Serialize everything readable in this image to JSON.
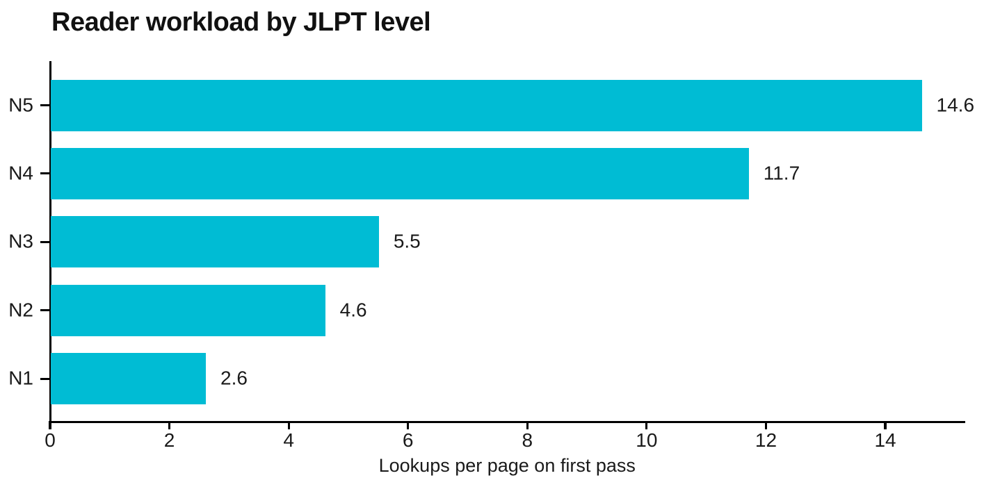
{
  "chart_data": {
    "type": "bar",
    "orientation": "horizontal",
    "title": "Reader workload by JLPT level",
    "xlabel": "Lookups per page on first pass",
    "ylabel": "",
    "categories": [
      "N5",
      "N4",
      "N3",
      "N2",
      "N1"
    ],
    "values": [
      14.6,
      11.7,
      5.5,
      4.6,
      2.6
    ],
    "value_labels": [
      "14.6",
      "11.7",
      "5.5",
      "4.6",
      "2.6"
    ],
    "xticks": [
      0,
      2,
      4,
      6,
      8,
      10,
      12,
      14
    ],
    "xtick_labels": [
      "0",
      "2",
      "4",
      "6",
      "8",
      "10",
      "12",
      "14"
    ],
    "xlim": [
      0,
      15.34
    ],
    "grid": false,
    "legend": null,
    "colors": {
      "bar": "#00bcd4",
      "text": "#1a1a1a",
      "axis": "#000000",
      "background": "#ffffff"
    }
  }
}
